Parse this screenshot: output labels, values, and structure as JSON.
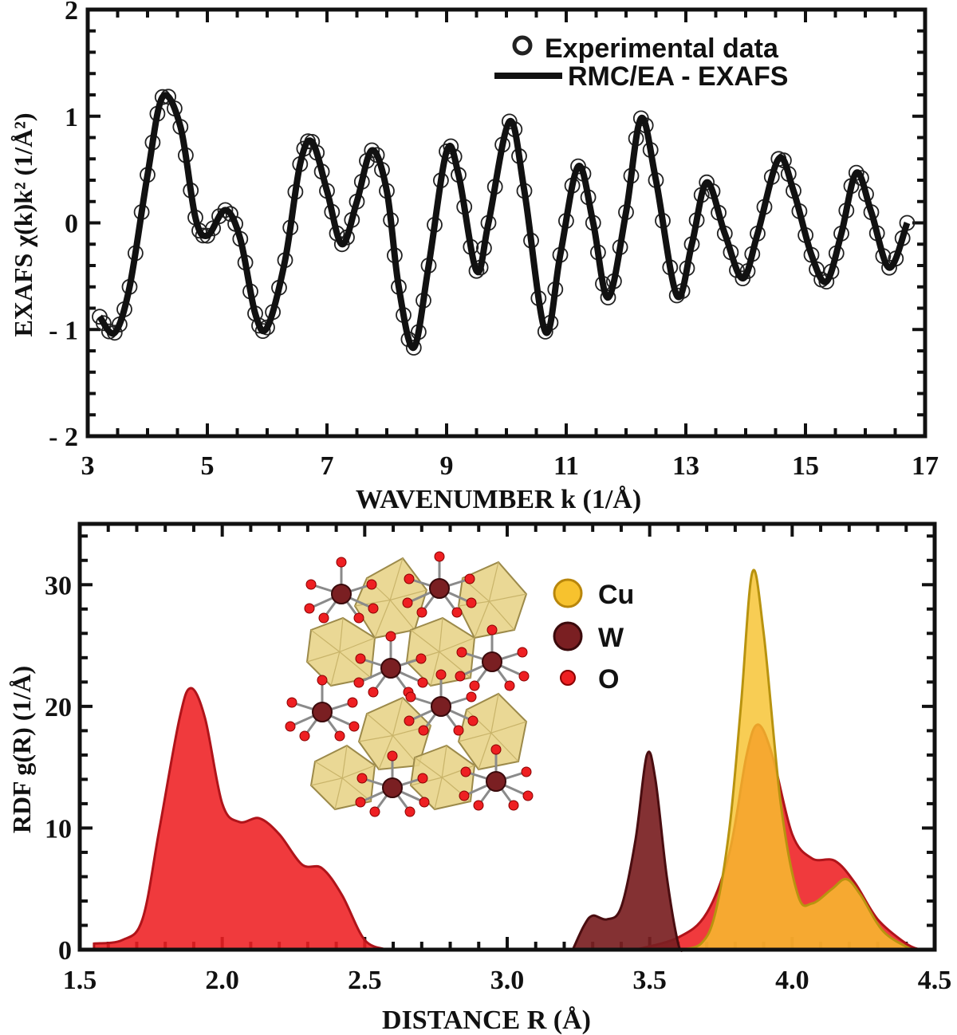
{
  "chart_data": [
    {
      "type": "line",
      "xlabel": "WAVENUMBER k (1/Å)",
      "ylabel": "EXAFS χ(k)k² (1/Å²)",
      "xlim": [
        3,
        17
      ],
      "ylim": [
        -2,
        2
      ],
      "x_ticks": [
        "3",
        "5",
        "7",
        "9",
        "11",
        "13",
        "15",
        "17"
      ],
      "y_ticks": [
        "- 2",
        "- 1",
        "0",
        "1",
        "2"
      ],
      "grid": false,
      "legend_position": "top-right",
      "series": [
        {
          "name": "Experimental data",
          "style": "open circles",
          "color": "#222222",
          "points": [
            [
              3.2,
              -0.88
            ],
            [
              3.45,
              -1.03
            ],
            [
              3.7,
              -0.6
            ],
            [
              4.0,
              0.45
            ],
            [
              4.25,
              1.18
            ],
            [
              4.55,
              0.9
            ],
            [
              4.8,
              0.05
            ],
            [
              5.0,
              -0.12
            ],
            [
              5.3,
              0.12
            ],
            [
              5.55,
              -0.15
            ],
            [
              5.8,
              -0.85
            ],
            [
              6.0,
              -0.98
            ],
            [
              6.3,
              -0.35
            ],
            [
              6.55,
              0.55
            ],
            [
              6.75,
              0.76
            ],
            [
              7.0,
              0.3
            ],
            [
              7.25,
              -0.2
            ],
            [
              7.5,
              0.2
            ],
            [
              7.75,
              0.68
            ],
            [
              8.0,
              0.3
            ],
            [
              8.2,
              -0.6
            ],
            [
              8.45,
              -1.17
            ],
            [
              8.7,
              -0.4
            ],
            [
              9.0,
              0.67
            ],
            [
              9.2,
              0.45
            ],
            [
              9.5,
              -0.45
            ],
            [
              9.7,
              0.0
            ],
            [
              10.05,
              0.95
            ],
            [
              10.3,
              0.3
            ],
            [
              10.65,
              -1.02
            ],
            [
              10.9,
              -0.3
            ],
            [
              11.2,
              0.53
            ],
            [
              11.45,
              0.0
            ],
            [
              11.7,
              -0.7
            ],
            [
              12.0,
              0.1
            ],
            [
              12.25,
              0.98
            ],
            [
              12.5,
              0.4
            ],
            [
              12.85,
              -0.68
            ],
            [
              13.1,
              -0.2
            ],
            [
              13.35,
              0.38
            ],
            [
              13.65,
              -0.1
            ],
            [
              13.95,
              -0.52
            ],
            [
              14.2,
              -0.1
            ],
            [
              14.55,
              0.6
            ],
            [
              14.8,
              0.3
            ],
            [
              15.1,
              -0.3
            ],
            [
              15.35,
              -0.55
            ],
            [
              15.6,
              -0.1
            ],
            [
              15.85,
              0.47
            ],
            [
              16.1,
              0.1
            ],
            [
              16.4,
              -0.42
            ],
            [
              16.7,
              0.0
            ]
          ]
        },
        {
          "name": "RMC/EA - EXAFS",
          "style": "solid line",
          "color": "#111111",
          "points": [
            [
              3.2,
              -0.88
            ],
            [
              3.45,
              -1.03
            ],
            [
              3.7,
              -0.6
            ],
            [
              4.0,
              0.45
            ],
            [
              4.25,
              1.18
            ],
            [
              4.55,
              0.9
            ],
            [
              4.8,
              0.05
            ],
            [
              5.0,
              -0.12
            ],
            [
              5.3,
              0.12
            ],
            [
              5.55,
              -0.15
            ],
            [
              5.8,
              -0.85
            ],
            [
              6.0,
              -0.98
            ],
            [
              6.3,
              -0.35
            ],
            [
              6.55,
              0.55
            ],
            [
              6.75,
              0.76
            ],
            [
              7.0,
              0.3
            ],
            [
              7.25,
              -0.2
            ],
            [
              7.5,
              0.2
            ],
            [
              7.75,
              0.68
            ],
            [
              8.0,
              0.3
            ],
            [
              8.2,
              -0.6
            ],
            [
              8.45,
              -1.17
            ],
            [
              8.7,
              -0.4
            ],
            [
              9.0,
              0.67
            ],
            [
              9.2,
              0.45
            ],
            [
              9.5,
              -0.45
            ],
            [
              9.7,
              0.0
            ],
            [
              10.05,
              0.95
            ],
            [
              10.3,
              0.3
            ],
            [
              10.65,
              -1.02
            ],
            [
              10.9,
              -0.3
            ],
            [
              11.2,
              0.53
            ],
            [
              11.45,
              0.0
            ],
            [
              11.7,
              -0.7
            ],
            [
              12.0,
              0.1
            ],
            [
              12.25,
              0.98
            ],
            [
              12.5,
              0.4
            ],
            [
              12.85,
              -0.68
            ],
            [
              13.1,
              -0.2
            ],
            [
              13.35,
              0.38
            ],
            [
              13.65,
              -0.1
            ],
            [
              13.95,
              -0.52
            ],
            [
              14.2,
              -0.1
            ],
            [
              14.55,
              0.6
            ],
            [
              14.8,
              0.3
            ],
            [
              15.1,
              -0.3
            ],
            [
              15.35,
              -0.55
            ],
            [
              15.6,
              -0.1
            ],
            [
              15.85,
              0.47
            ],
            [
              16.1,
              0.1
            ],
            [
              16.4,
              -0.42
            ],
            [
              16.7,
              0.0
            ]
          ]
        }
      ]
    },
    {
      "type": "area",
      "xlabel": "DISTANCE R (Å)",
      "ylabel": "RDF g(R) (1/Å)",
      "xlim": [
        1.5,
        4.5
      ],
      "ylim": [
        0,
        35
      ],
      "x_ticks": [
        "1.5",
        "2.0",
        "2.5",
        "3.0",
        "3.5",
        "4.0",
        "4.5"
      ],
      "y_ticks": [
        "0",
        "10",
        "20",
        "30"
      ],
      "grid": false,
      "legend_position": "top-center",
      "legend_entries": [
        "Cu",
        "W",
        "O"
      ],
      "inset": "crystal structure illustration (Cu polyhedra, W and O atoms)",
      "series": [
        {
          "color": "#ee1f22",
          "points": [
            [
              1.55,
              0.5
            ],
            [
              1.65,
              0.8
            ],
            [
              1.72,
              2.5
            ],
            [
              1.78,
              10
            ],
            [
              1.85,
              19
            ],
            [
              1.89,
              21.5
            ],
            [
              1.94,
              19
            ],
            [
              2.0,
              12
            ],
            [
              2.06,
              10.5
            ],
            [
              2.13,
              10.8
            ],
            [
              2.2,
              9.5
            ],
            [
              2.28,
              7.0
            ],
            [
              2.35,
              6.7
            ],
            [
              2.42,
              4.5
            ],
            [
              2.5,
              0.8
            ],
            [
              2.58,
              0
            ]
          ]
        },
        {
          "color": "#ee1f22",
          "points": [
            [
              3.45,
              0
            ],
            [
              3.6,
              1.0
            ],
            [
              3.7,
              3.0
            ],
            [
              3.78,
              8
            ],
            [
              3.84,
              16
            ],
            [
              3.88,
              18.5
            ],
            [
              3.93,
              16
            ],
            [
              4.0,
              9.5
            ],
            [
              4.07,
              7.5
            ],
            [
              4.15,
              7.3
            ],
            [
              4.22,
              5.5
            ],
            [
              4.3,
              2.5
            ],
            [
              4.4,
              0.5
            ],
            [
              4.45,
              0
            ]
          ]
        },
        {
          "color": "#7a1f22",
          "points": [
            [
              3.23,
              0
            ],
            [
              3.27,
              2.0
            ],
            [
              3.3,
              2.8
            ],
            [
              3.35,
              2.5
            ],
            [
              3.4,
              3.5
            ],
            [
              3.45,
              9
            ],
            [
              3.49,
              16
            ],
            [
              3.52,
              14
            ],
            [
              3.56,
              6
            ],
            [
              3.6,
              0.5
            ],
            [
              3.62,
              0
            ]
          ]
        },
        {
          "color": "#f7c22e",
          "points": [
            [
              3.6,
              0
            ],
            [
              3.68,
              0.5
            ],
            [
              3.73,
              3
            ],
            [
              3.78,
              10
            ],
            [
              3.82,
              20
            ],
            [
              3.86,
              31
            ],
            [
              3.9,
              26
            ],
            [
              3.96,
              12
            ],
            [
              4.02,
              4.5
            ],
            [
              4.07,
              3.8
            ],
            [
              4.14,
              5.0
            ],
            [
              4.19,
              5.8
            ],
            [
              4.24,
              4.5
            ],
            [
              4.32,
              1.5
            ],
            [
              4.42,
              0
            ]
          ]
        }
      ]
    }
  ]
}
